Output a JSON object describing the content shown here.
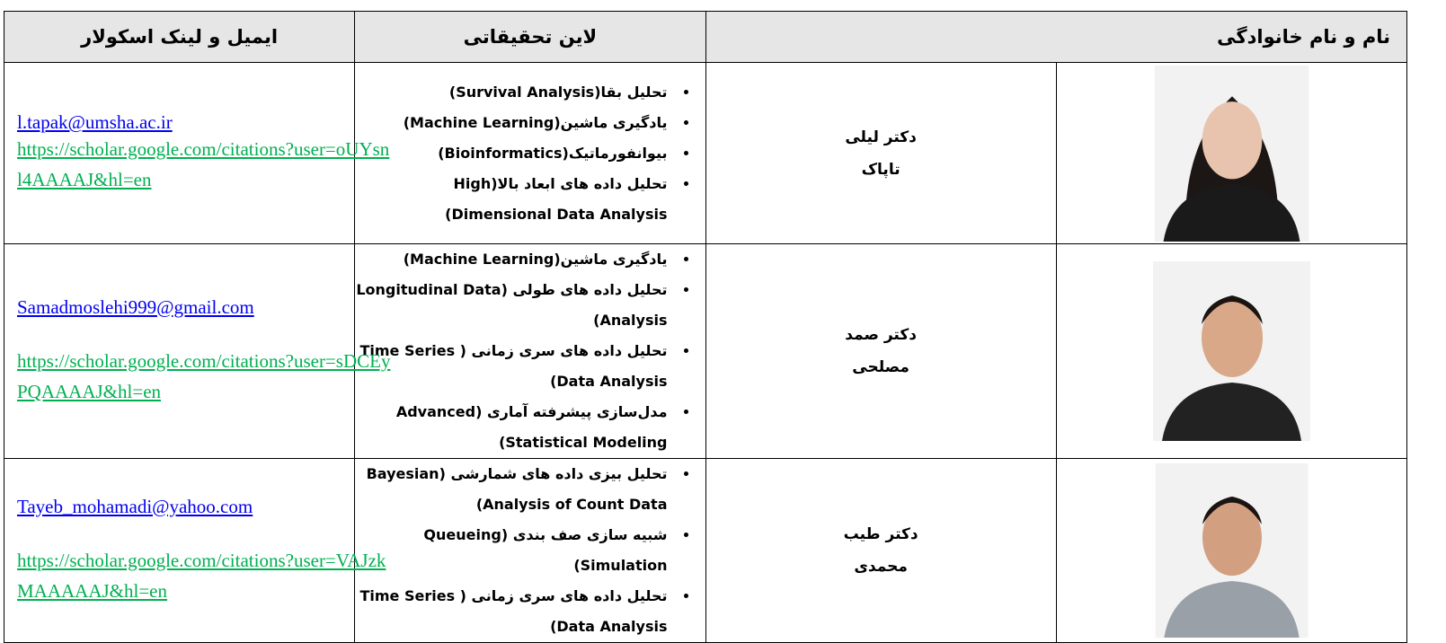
{
  "header": {
    "email": "ایمیل و لینک اسکولار",
    "research": "لاین تحقیقاتی",
    "name": "نام و نام خانوادگی"
  },
  "rows": [
    {
      "name": [
        "دکتر لیلی",
        "تاپاک"
      ],
      "research": [
        "تحلیل بقا(Survival Analysis)",
        "یادگیری ماشین(Machine Learning)",
        "بیوانفورماتیک(Bioinformatics)",
        "تحلیل داده های ابعاد بالا(High Dimensional Data Analysis)"
      ],
      "email": "l.tapak@umsha.ac.ir",
      "scholar": "https://scholar.google.com/citations?user=oUYsnl4AAAAJ&hl=en"
    },
    {
      "name": [
        "دکتر صمد",
        "مصلحی"
      ],
      "research": [
        "یادگیری ماشین(Machine Learning)",
        "تحلیل داده های طولی (Longitudinal Data Analysis)",
        "تحلیل داده های سری زمانی ( Time Series Data Analysis)",
        "مدل‌سازی پیشرفته آماری (Advanced Statistical Modeling)"
      ],
      "email": "Samadmoslehi999@gmail.com",
      "scholar": "https://scholar.google.com/citations?user=sDCEyPQAAAAJ&hl=en"
    },
    {
      "name": [
        "دکتر طیب",
        "محمدی"
      ],
      "research": [
        "تحلیل بیزی داده های شمارشی (Bayesian Analysis of Count Data)",
        "شبیه سازی صف بندی (Queueing Simulation)",
        "تحلیل داده های سری زمانی ( Time Series Data Analysis)"
      ],
      "email": "Tayeb_mohamadi@yahoo.com",
      "scholar": "https://scholar.google.com/citations?user=VAJzkMAAAAAJ&hl=en"
    }
  ]
}
